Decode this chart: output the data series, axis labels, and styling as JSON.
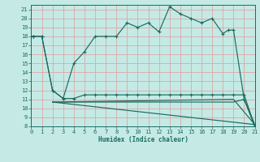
{
  "bg_color": "#c5eae5",
  "grid_color": "#dba8a8",
  "line_color": "#1a6b60",
  "xlabel": "Humidex (Indice chaleur)",
  "xlim": [
    0,
    21
  ],
  "ylim": [
    8,
    21.5
  ],
  "xticks": [
    0,
    1,
    2,
    3,
    4,
    5,
    6,
    7,
    8,
    9,
    10,
    11,
    12,
    13,
    14,
    15,
    16,
    17,
    18,
    19,
    20,
    21
  ],
  "yticks": [
    8,
    9,
    10,
    11,
    12,
    13,
    14,
    15,
    16,
    17,
    18,
    19,
    20,
    21
  ],
  "line1_x": [
    0,
    0.2,
    1,
    2,
    3,
    4,
    5,
    6,
    7,
    8,
    9,
    10,
    11,
    12,
    13,
    14,
    15,
    16,
    17,
    18,
    18.5,
    19,
    20,
    21
  ],
  "line1_y": [
    18,
    18,
    18,
    12,
    11.1,
    15,
    16.3,
    18,
    18,
    18,
    19.5,
    19,
    19.5,
    18.5,
    21.3,
    20.5,
    20,
    19.5,
    20,
    18.3,
    18.7,
    18.7,
    11,
    8
  ],
  "line2_x": [
    0,
    0.2,
    1,
    2,
    3,
    4,
    5,
    6,
    7,
    8,
    9,
    10,
    11,
    12,
    13,
    14,
    15,
    16,
    17,
    18,
    19,
    20,
    21
  ],
  "line2_y": [
    18,
    18,
    18,
    12,
    11.1,
    11.1,
    11.5,
    11.5,
    11.5,
    11.5,
    11.5,
    11.5,
    11.5,
    11.5,
    11.5,
    11.5,
    11.5,
    11.5,
    11.5,
    11.5,
    11.5,
    11.5,
    8
  ],
  "line3_x": [
    2,
    21
  ],
  "line3_y": [
    10.7,
    8.2
  ],
  "line4_x": [
    2,
    19,
    21
  ],
  "line4_y": [
    10.7,
    11,
    8.2
  ],
  "line5_x": [
    2,
    19,
    20,
    21
  ],
  "line5_y": [
    10.7,
    10.7,
    11,
    8.2
  ],
  "marker_style": "+",
  "marker_size": 3.0,
  "tick_fontsize": 5.0,
  "xlabel_fontsize": 5.5
}
